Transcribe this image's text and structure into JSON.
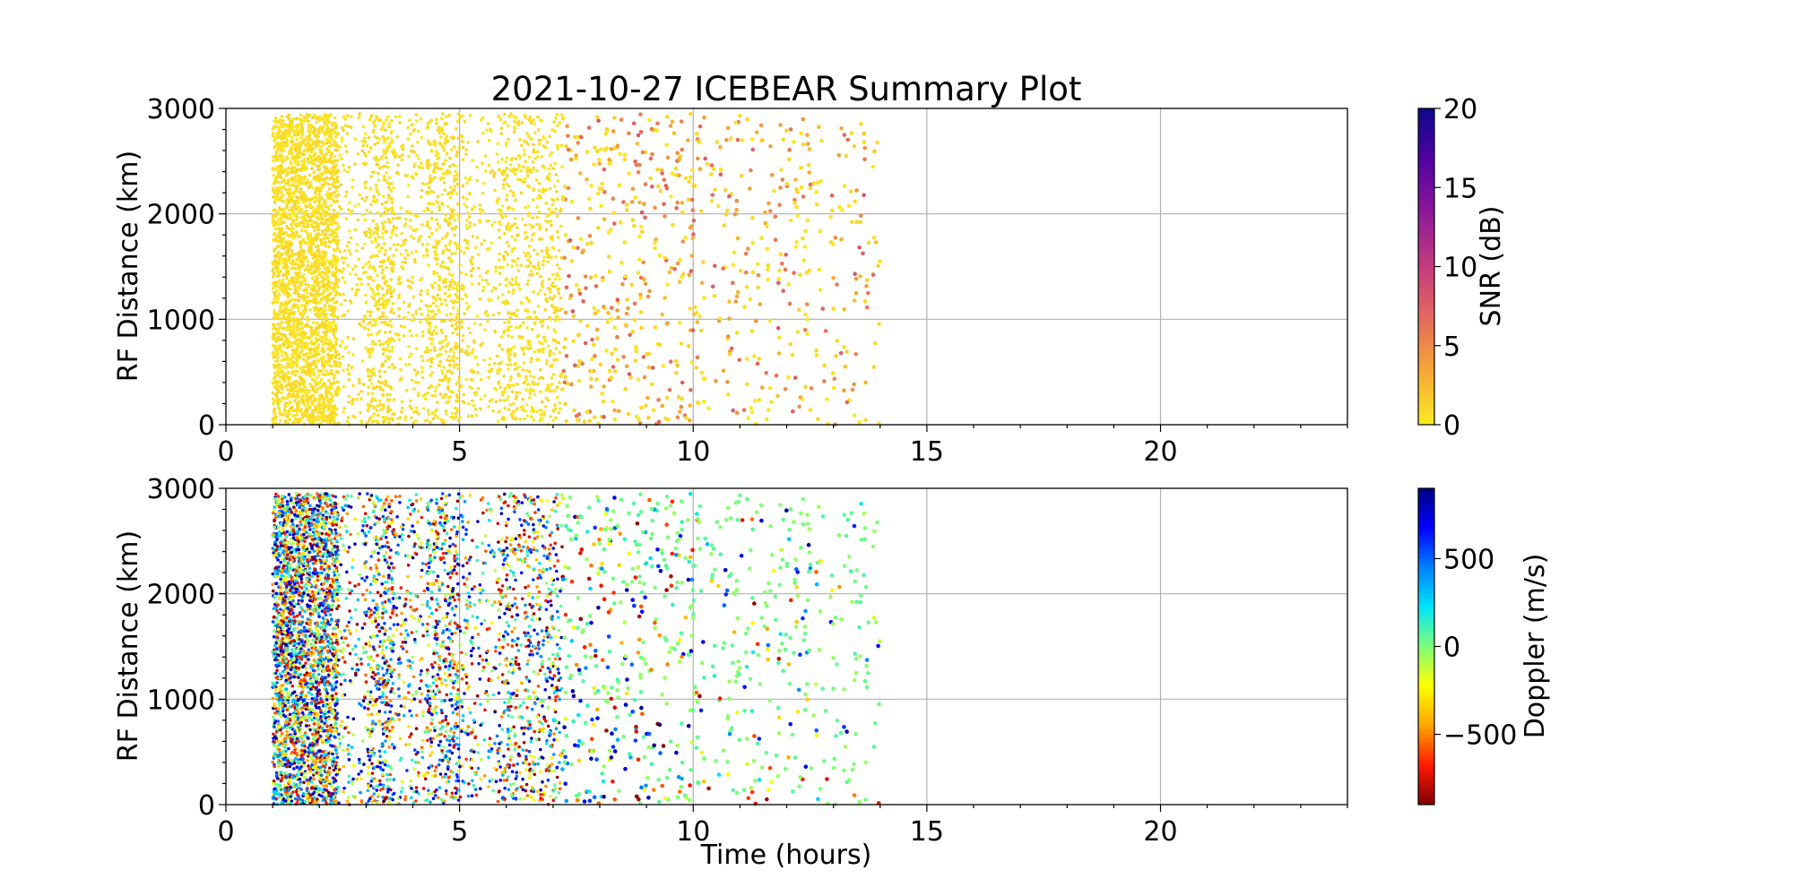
{
  "figure": {
    "title": "2021-10-27 ICEBEAR Summary Plot"
  },
  "chart_data": [
    {
      "type": "scatter",
      "xlabel": "",
      "ylabel": "RF Distance (km)",
      "xlim": [
        0,
        24
      ],
      "ylim": [
        0,
        3000
      ],
      "xticks": [
        0,
        5,
        10,
        15,
        20
      ],
      "yticks": [
        0,
        1000,
        2000,
        3000
      ],
      "grid": true,
      "colorbar": {
        "label": "SNR (dB)",
        "min": 0,
        "max": 20,
        "ticks": [
          0,
          5,
          10,
          15,
          20
        ],
        "tick_labels": [
          "0",
          "5",
          "10",
          "15",
          "20"
        ],
        "colormap": [
          "#fbeb24",
          "#f6a835",
          "#e56b5d",
          "#c43b7e",
          "#8e1a98",
          "#5302a3",
          "#0d0887"
        ]
      },
      "series": [
        {
          "time_ranges_hours": [
            [
              1.0,
              2.4
            ],
            [
              2.4,
              7.2
            ],
            [
              7.2,
              10.0
            ],
            [
              10.0,
              14.0
            ]
          ],
          "density_per_range": [
            "very high",
            "high",
            "medium",
            "low"
          ],
          "distance_km_range": [
            0,
            2950
          ],
          "value_range": [
            0,
            10
          ],
          "typical_value": 0.5
        }
      ]
    },
    {
      "type": "scatter",
      "xlabel": "Time (hours)",
      "ylabel": "RF Distance (km)",
      "xlim": [
        0,
        24
      ],
      "ylim": [
        0,
        3000
      ],
      "xticks": [
        0,
        5,
        10,
        15,
        20
      ],
      "yticks": [
        0,
        1000,
        2000,
        3000
      ],
      "grid": true,
      "colorbar": {
        "label": "Doppler (m/s)",
        "min": -900,
        "max": 900,
        "ticks": [
          -500,
          0,
          500
        ],
        "tick_labels": [
          "−500",
          "0",
          "500"
        ],
        "colormap": [
          "#800000",
          "#ff1a00",
          "#ffa500",
          "#ffff00",
          "#7dff7a",
          "#00e4f8",
          "#0080ff",
          "#0000ff",
          "#000080"
        ]
      },
      "series": [
        {
          "time_ranges_hours": [
            [
              1.0,
              2.4
            ],
            [
              2.4,
              7.2
            ],
            [
              7.2,
              10.0
            ],
            [
              10.0,
              14.0
            ]
          ],
          "density_per_range": [
            "very high",
            "high",
            "medium",
            "low"
          ],
          "distance_km_range": [
            0,
            2950
          ],
          "value_range": [
            -900,
            900
          ],
          "late_values_mostly_near": 0
        }
      ]
    }
  ]
}
